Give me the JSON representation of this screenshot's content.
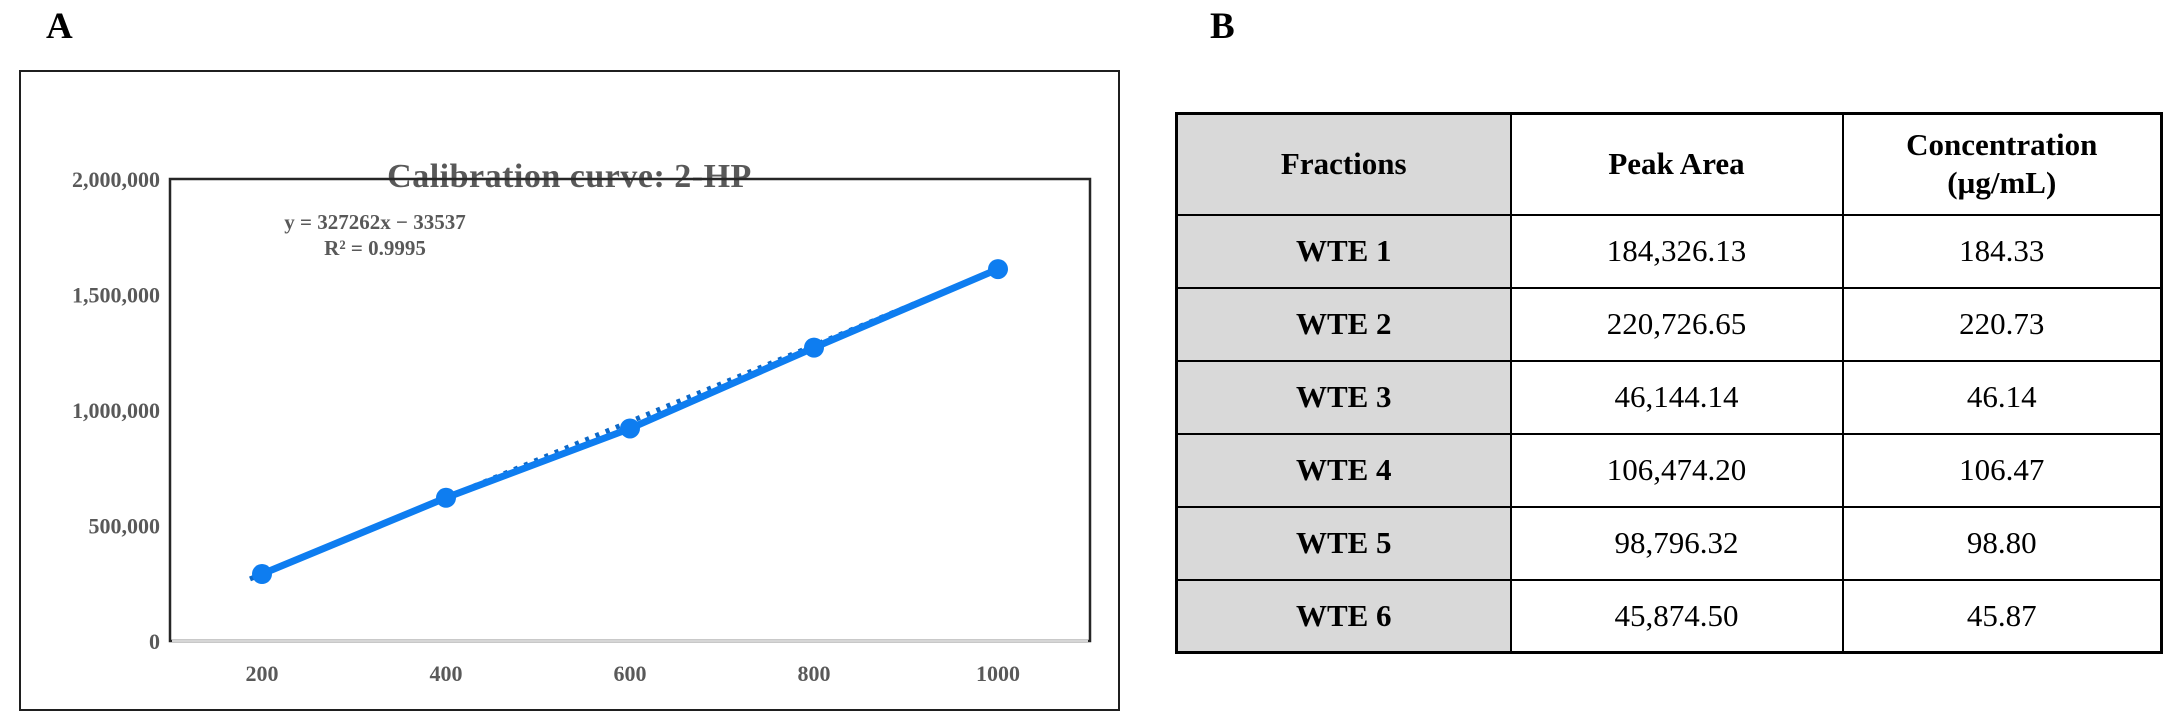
{
  "figure": {
    "panel_a_label": "A",
    "panel_b_label": "B"
  },
  "chart_data": {
    "type": "line",
    "title": "Calibration curve: 2-HP",
    "equation_line1": "y = 327262x − 33537",
    "equation_line2": "R² = 0.9995",
    "x": [
      200,
      400,
      600,
      800,
      1000
    ],
    "y": [
      290000,
      620000,
      920000,
      1270000,
      1610000
    ],
    "x_tick_labels": [
      "200",
      "400",
      "600",
      "800",
      "1000"
    ],
    "y_ticks": [
      0,
      500000,
      1000000,
      1500000,
      2000000
    ],
    "y_tick_labels": [
      "0",
      "500,000",
      "1,000,000",
      "1,500,000",
      "2,000,000"
    ],
    "xlim": [
      100,
      1100
    ],
    "ylim": [
      0,
      2000000
    ],
    "grid": false,
    "legend": "none",
    "series_color": "#0e7df0",
    "trendline_style": "dashed",
    "marker": "circle"
  },
  "table": {
    "headers": {
      "fractions": "Fractions",
      "peak_area": "Peak Area",
      "concentration_line1": "Concentration",
      "concentration_line2": "(µg/mL)"
    },
    "rows": [
      {
        "fraction": "WTE 1",
        "peak_area": "184,326.13",
        "concentration": "184.33"
      },
      {
        "fraction": "WTE 2",
        "peak_area": "220,726.65",
        "concentration": "220.73"
      },
      {
        "fraction": "WTE 3",
        "peak_area": "46,144.14",
        "concentration": "46.14"
      },
      {
        "fraction": "WTE 4",
        "peak_area": "106,474.20",
        "concentration": "106.47"
      },
      {
        "fraction": "WTE 5",
        "peak_area": "98,796.32",
        "concentration": "98.80"
      },
      {
        "fraction": "WTE 6",
        "peak_area": "45,874.50",
        "concentration": "45.87"
      }
    ]
  },
  "colors": {
    "series_blue": "#0e7df0",
    "axis_text_gray": "#595959",
    "table_header_fill": "#d9d9d9",
    "border_black": "#000000"
  }
}
